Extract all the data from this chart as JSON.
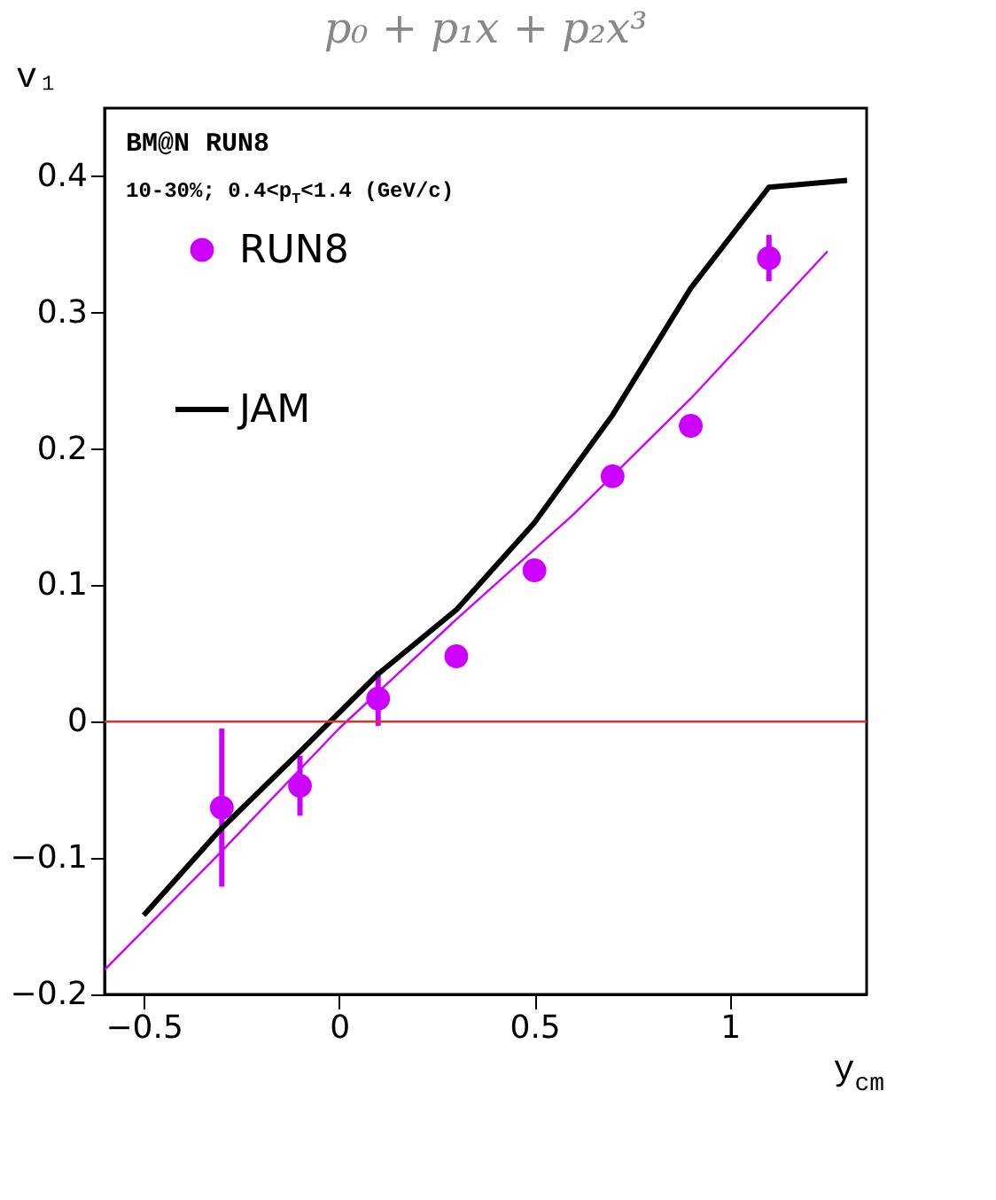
{
  "chart_data": {
    "type": "scatter",
    "title": "p₀ + p₁x + p₂x³",
    "xlabel": "y$_{cm}$",
    "ylabel": "v₁",
    "annotations": [
      "BM@N RUN8",
      "10-30%; 0.4<p$_{T}$<1.4 (GeV/c)"
    ],
    "xlim": [
      -0.6,
      1.35
    ],
    "ylim": [
      -0.2,
      0.45
    ],
    "xticks": [
      {
        "value": -0.5,
        "label": "−0.5"
      },
      0,
      0.5,
      1
    ],
    "yticks": [
      {
        "value": -0.2,
        "label": "−0.2"
      },
      {
        "value": -0.1,
        "label": "−0.1"
      },
      0,
      0.1,
      0.2,
      0.3,
      0.4
    ],
    "grid": false,
    "legend": "top left",
    "ref_lines": [
      {
        "axis": "y",
        "value": 0,
        "color": "#e03030"
      }
    ],
    "series": [
      {
        "name": "RUN8",
        "marker": "circle",
        "color": "#cc00ff",
        "x": [
          -0.3,
          -0.1,
          0.1,
          0.3,
          0.5,
          0.7,
          0.9,
          1.1
        ],
        "values": [
          -0.063,
          -0.047,
          0.017,
          0.048,
          0.111,
          0.18,
          0.217,
          0.34
        ],
        "errors": [
          0.058,
          0.022,
          0.02,
          null,
          null,
          null,
          null,
          0.017
        ]
      },
      {
        "name": "JAM",
        "type": "line",
        "color": "#000000",
        "x": [
          -0.5,
          -0.3,
          -0.1,
          0.1,
          0.3,
          0.5,
          0.7,
          0.9,
          1.1,
          1.3
        ],
        "values": [
          -0.142,
          -0.078,
          -0.022,
          0.035,
          0.082,
          0.146,
          0.225,
          0.318,
          0.392,
          0.397
        ]
      },
      {
        "type": "line",
        "color": "#cc00ff",
        "x": [
          -0.6,
          -0.3,
          0,
          0.3,
          0.6,
          0.9,
          1.25
        ],
        "values": [
          -0.182,
          -0.095,
          -0.005,
          0.075,
          0.152,
          0.237,
          0.345
        ]
      }
    ]
  }
}
